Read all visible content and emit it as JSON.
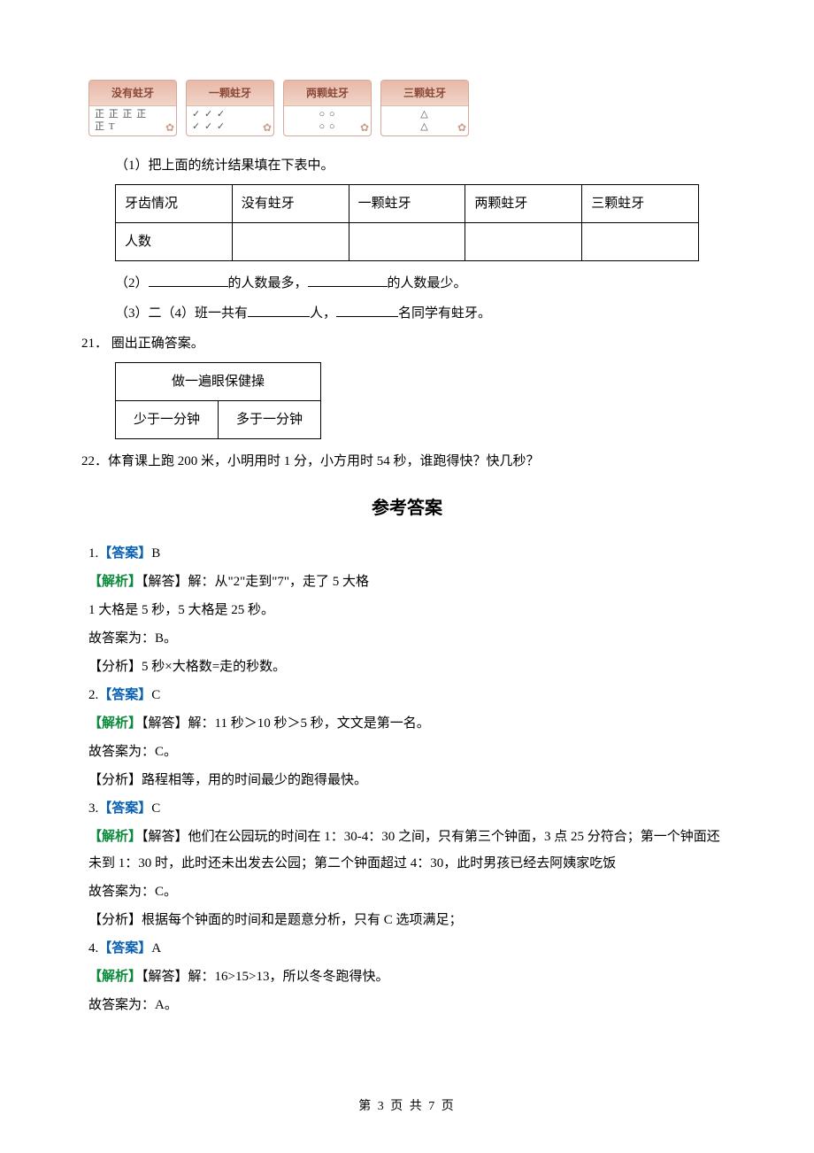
{
  "tally": {
    "cards": [
      {
        "header": "没有蛀牙",
        "line1": "正 正 正 正",
        "line2": "正 T"
      },
      {
        "header": "一颗蛀牙",
        "line1": "✓  ✓  ✓",
        "line2": "✓  ✓  ✓"
      },
      {
        "header": "两颗蛀牙",
        "line1": "○   ○",
        "line2": "○   ○"
      },
      {
        "header": "三颗蛀牙",
        "line1": "△",
        "line2": "△"
      }
    ]
  },
  "q20": {
    "sub1": "（1）把上面的统计结果填在下表中。",
    "table": {
      "row1": [
        "牙齿情况",
        "没有蛀牙",
        "一颗蛀牙",
        "两颗蛀牙",
        "三颗蛀牙"
      ],
      "row2_label": "人数"
    },
    "sub2a": "（2）",
    "sub2b": "的人数最多，",
    "sub2c": "的人数最少。",
    "sub3a": "（3）二（4）班一共有",
    "sub3b": "人，",
    "sub3c": "名同学有蛀牙。"
  },
  "q21": {
    "label": "21．  圈出正确答案。",
    "table": {
      "header": "做一遍眼保健操",
      "left": "少于一分钟",
      "right": "多于一分钟"
    }
  },
  "q22": {
    "text": "22．体育课上跑 200 米，小明用时 1 分，小方用时 54 秒，谁跑得快？快几秒？"
  },
  "answersTitle": "参考答案",
  "labels": {
    "answer": "【答案】",
    "parse": "【解析】",
    "solve": "【解答】",
    "analysis": "【分析】"
  },
  "answers": [
    {
      "num": "1.",
      "ans": "B",
      "parse": "解：从\"2\"走到\"7\"，走了 5 大格",
      "extra": [
        "1 大格是 5 秒，5 大格是 25 秒。",
        "故答案为：B。"
      ],
      "analysis": "5 秒×大格数=走的秒数。"
    },
    {
      "num": "2.",
      "ans": "C",
      "parse": "解：11 秒＞10 秒＞5 秒，文文是第一名。",
      "extra": [
        "故答案为：C。"
      ],
      "analysis": "路程相等，用的时间最少的跑得最快。"
    },
    {
      "num": "3.",
      "ans": "C",
      "parse": "他们在公园玩的时间在 1：30-4：30 之间，只有第三个钟面，3 点 25 分符合；第一个钟面还未到 1：30 时，此时还未出发去公园；第二个钟面超过 4：30，此时男孩已经去阿姨家吃饭",
      "extra": [
        "故答案为：C。"
      ],
      "analysis": "根据每个钟面的时间和是题意分析，只有 C 选项满足；"
    },
    {
      "num": "4.",
      "ans": "A",
      "parse": "解：16>15>13，所以冬冬跑得快。",
      "extra": [
        "故答案为：A。"
      ],
      "analysis": ""
    }
  ],
  "footer": {
    "pre": "第 ",
    "cur": "3",
    "mid": " 页 共 ",
    "total": "7",
    "post": " 页"
  }
}
